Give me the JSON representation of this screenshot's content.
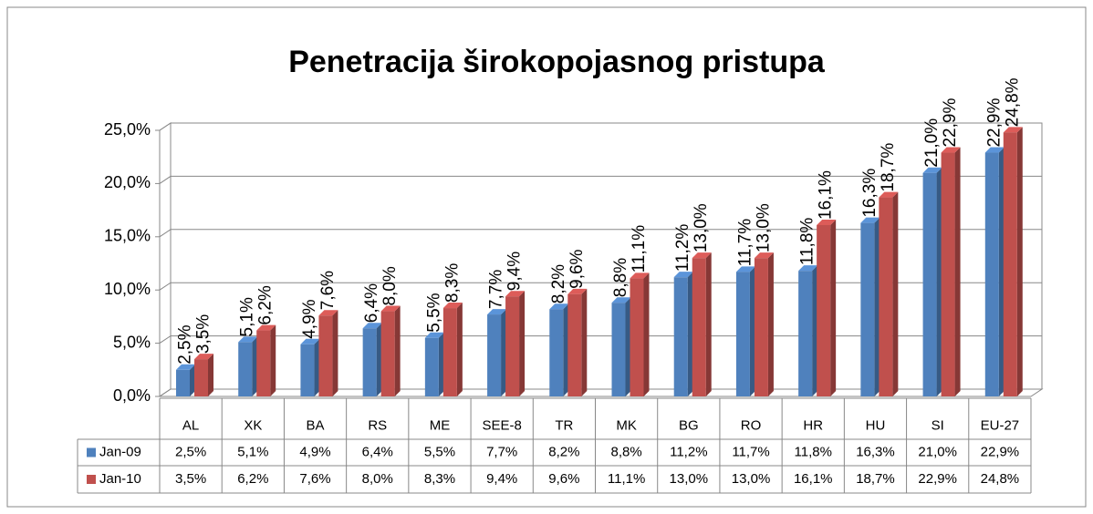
{
  "chart_data": {
    "type": "bar3d",
    "title": "Penetracija širokopojasnog  pristupa",
    "categories": [
      "AL",
      "XK",
      "BA",
      "RS",
      "ME",
      "SEE-8",
      "TR",
      "MK",
      "BG",
      "RO",
      "HR",
      "HU",
      "SI",
      "EU-27"
    ],
    "series": [
      {
        "name": "Jan-09",
        "color": "#4f81bd",
        "values": [
          2.5,
          5.1,
          4.9,
          6.4,
          5.5,
          7.7,
          8.2,
          8.8,
          11.2,
          11.7,
          11.8,
          16.3,
          21.0,
          22.9
        ],
        "value_labels": [
          "2,5%",
          "5,1%",
          "4,9%",
          "6,4%",
          "5,5%",
          "7,7%",
          "8,2%",
          "8,8%",
          "11,2%",
          "11,7%",
          "11,8%",
          "16,3%",
          "21,0%",
          "22,9%"
        ]
      },
      {
        "name": "Jan-10",
        "color": "#c0504d",
        "values": [
          3.5,
          6.2,
          7.6,
          8.0,
          8.3,
          9.4,
          9.6,
          11.1,
          13.0,
          13.0,
          16.1,
          18.7,
          22.9,
          24.8
        ],
        "value_labels": [
          "3,5%",
          "6,2%",
          "7,6%",
          "8,0%",
          "8,3%",
          "9,4%",
          "9,6%",
          "11,1%",
          "13,0%",
          "13,0%",
          "16,1%",
          "18,7%",
          "22,9%",
          "24,8%"
        ]
      }
    ],
    "ylim": [
      0,
      25
    ],
    "yticks": [
      {
        "value": 0,
        "label": "0,0%"
      },
      {
        "value": 5,
        "label": "5,0%"
      },
      {
        "value": 10,
        "label": "10,0%"
      },
      {
        "value": 15,
        "label": "15,0%"
      },
      {
        "value": 20,
        "label": "20,0%"
      },
      {
        "value": 25,
        "label": "25,0%"
      }
    ],
    "grid": true
  }
}
